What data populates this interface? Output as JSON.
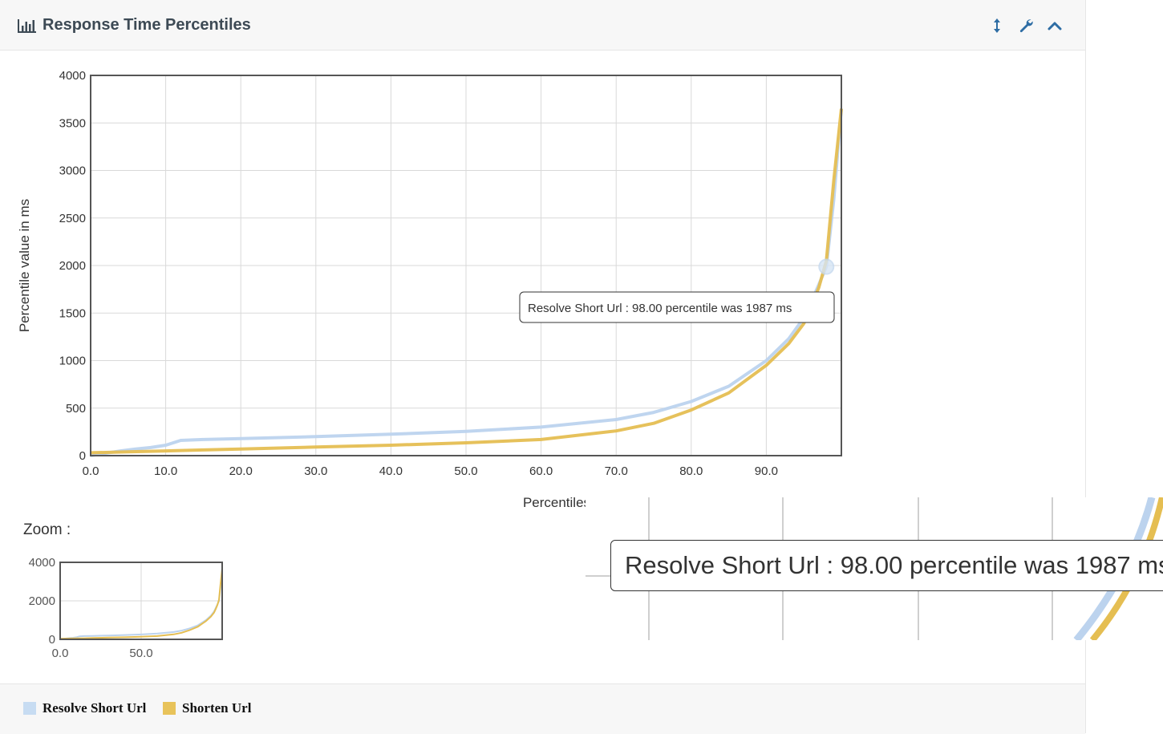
{
  "panel": {
    "title": "Response Time Percentiles",
    "title_icon": "bar-chart-icon",
    "tools": [
      {
        "name": "resize-icon",
        "label": "resize"
      },
      {
        "name": "wrench-icon",
        "label": "settings"
      },
      {
        "name": "chevron-up-icon",
        "label": "collapse"
      }
    ]
  },
  "zoom": {
    "label": "Zoom :"
  },
  "tooltip": {
    "text": "Resolve Short Url : 98.00 percentile was 1987 ms"
  },
  "legend": [
    {
      "label": "Resolve Short Url",
      "color": "#c7dcf2"
    },
    {
      "label": "Shorten Url",
      "color": "#e8c35a"
    }
  ],
  "colors": {
    "resolve_line": "#bcd3ee",
    "shorten_line": "#e5be52",
    "grid": "#d9d9d9",
    "axis_text": "#333333"
  },
  "chart_data": [
    {
      "type": "line",
      "title": "",
      "xlabel": "Percentiles",
      "ylabel": "Percentile value in ms",
      "xlim": [
        0,
        100
      ],
      "ylim": [
        0,
        4000
      ],
      "x_ticks": [
        "0.0",
        "10.0",
        "20.0",
        "30.0",
        "40.0",
        "50.0",
        "60.0",
        "70.0",
        "80.0",
        "90.0"
      ],
      "y_ticks": [
        "0",
        "500",
        "1000",
        "1500",
        "2000",
        "2500",
        "3000",
        "3500",
        "4000"
      ],
      "grid": true,
      "series": [
        {
          "name": "Resolve Short Url",
          "x": [
            0,
            2,
            4,
            6,
            8,
            10,
            11,
            12,
            15,
            20,
            30,
            40,
            50,
            60,
            70,
            75,
            80,
            85,
            90,
            93,
            95,
            96,
            97,
            98,
            99,
            100
          ],
          "y": [
            0,
            25,
            50,
            70,
            85,
            110,
            135,
            160,
            170,
            180,
            200,
            225,
            255,
            300,
            380,
            455,
            570,
            730,
            1000,
            1230,
            1450,
            1620,
            1800,
            1987,
            2700,
            3650
          ]
        },
        {
          "name": "Shorten Url",
          "x": [
            0,
            5,
            10,
            15,
            20,
            30,
            40,
            50,
            60,
            70,
            75,
            80,
            85,
            90,
            93,
            95,
            96,
            97,
            98,
            99,
            100
          ],
          "y": [
            30,
            40,
            50,
            60,
            70,
            90,
            110,
            135,
            170,
            260,
            340,
            480,
            660,
            950,
            1180,
            1390,
            1570,
            1770,
            2050,
            2900,
            3650
          ]
        }
      ],
      "highlight": {
        "series": "Resolve Short Url",
        "x": 98,
        "y": 1987
      }
    },
    {
      "type": "line",
      "title": "",
      "xlabel": "",
      "ylabel": "",
      "xlim": [
        0,
        100
      ],
      "ylim": [
        0,
        4000
      ],
      "x_ticks": [
        "0.0",
        "50.0"
      ],
      "y_ticks": [
        "0",
        "2000",
        "4000"
      ],
      "grid": true,
      "series_ref": [
        "Resolve Short Url",
        "Shorten Url"
      ]
    }
  ]
}
